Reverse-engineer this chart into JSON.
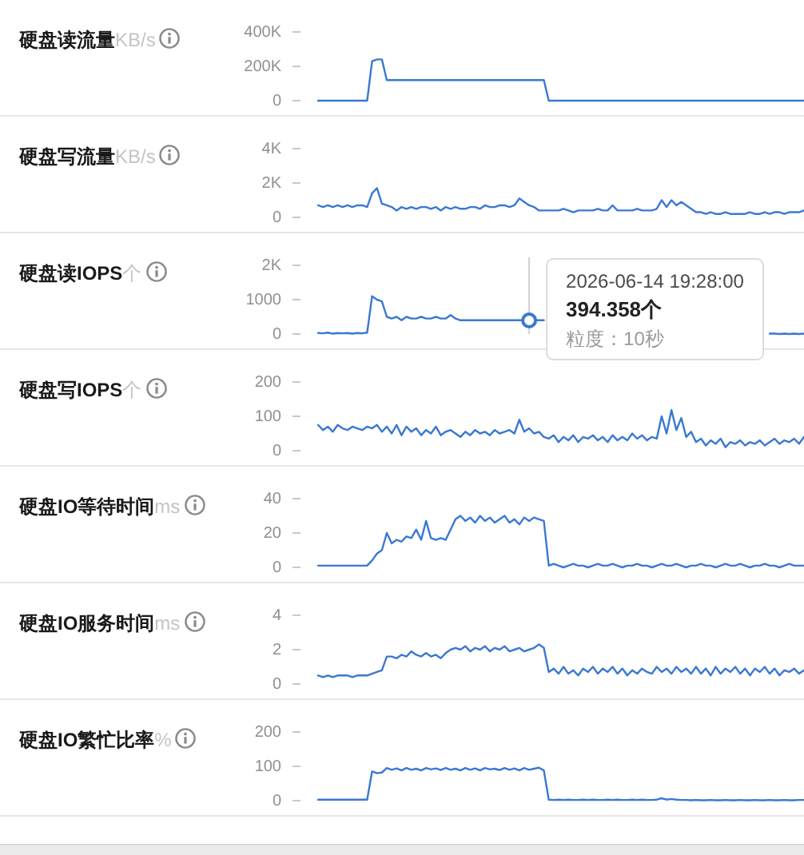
{
  "chart_data": [
    {
      "type": "line",
      "title": "**硬盘读流量**KB/s",
      "color": "#3a78d2",
      "ylim": [
        0,
        400000
      ],
      "yticks": [
        0,
        {
          "value": 200000,
          "label": "200K"
        },
        {
          "value": 400000,
          "label": "400K"
        }
      ],
      "categories": [
        null,
        null,
        null,
        null,
        null,
        null,
        null,
        null,
        null,
        null,
        null,
        null,
        null,
        null,
        null,
        null,
        null,
        null,
        null,
        null,
        null,
        null,
        null,
        null,
        null,
        null,
        null,
        null,
        null,
        null,
        null,
        null,
        null,
        null,
        null,
        null,
        null,
        null,
        null,
        null,
        null,
        null,
        null,
        null,
        null,
        null,
        null,
        null,
        null,
        null,
        null,
        null,
        null,
        null,
        null,
        null,
        null,
        null,
        null,
        null,
        null,
        null,
        null,
        null,
        null,
        null,
        null,
        null,
        null,
        null,
        null,
        null,
        null,
        null,
        null,
        null,
        null,
        null,
        null,
        null,
        null,
        null,
        null,
        null,
        null,
        null,
        null,
        null,
        null,
        null,
        null,
        null,
        null,
        null,
        null,
        null,
        null,
        null,
        null,
        null
      ],
      "values": [
        0,
        0,
        0,
        0,
        0,
        0,
        0,
        0,
        0,
        0,
        0,
        230000,
        240000,
        240000,
        120000,
        120000,
        120000,
        120000,
        120000,
        120000,
        120000,
        120000,
        120000,
        120000,
        120000,
        120000,
        120000,
        120000,
        120000,
        120000,
        120000,
        120000,
        120000,
        120000,
        120000,
        120000,
        120000,
        120000,
        120000,
        120000,
        120000,
        120000,
        120000,
        120000,
        120000,
        120000,
        120000,
        0,
        0,
        0,
        0,
        0,
        0,
        0,
        0,
        0,
        0,
        0,
        0,
        0,
        0,
        0,
        0,
        0,
        0,
        0,
        0,
        0,
        0,
        0,
        0,
        0,
        0,
        0,
        0,
        0,
        0,
        0,
        0,
        0,
        0,
        0,
        0,
        0,
        0,
        0,
        0,
        0,
        0,
        0,
        0,
        0,
        0,
        0,
        0,
        0,
        0,
        0,
        0,
        0
      ]
    },
    {
      "type": "line",
      "title": "**硬盘写流量**KB/s",
      "color": "#3a78d2",
      "ylim": [
        0,
        4000
      ],
      "yticks": [
        0,
        {
          "value": 2000,
          "label": "2K"
        },
        {
          "value": 4000,
          "label": "4K"
        }
      ],
      "categories": [
        null,
        null,
        null,
        null,
        null,
        null,
        null,
        null,
        null,
        null,
        null,
        null,
        null,
        null,
        null,
        null,
        null,
        null,
        null,
        null,
        null,
        null,
        null,
        null,
        null,
        null,
        null,
        null,
        null,
        null,
        null,
        null,
        null,
        null,
        null,
        null,
        null,
        null,
        null,
        null,
        null,
        null,
        null,
        null,
        null,
        null,
        null,
        null,
        null,
        null,
        null,
        null,
        null,
        null,
        null,
        null,
        null,
        null,
        null,
        null,
        null,
        null,
        null,
        null,
        null,
        null,
        null,
        null,
        null,
        null,
        null,
        null,
        null,
        null,
        null,
        null,
        null,
        null,
        null,
        null,
        null,
        null,
        null,
        null,
        null,
        null,
        null,
        null,
        null,
        null,
        null,
        null,
        null,
        null,
        null,
        null,
        null,
        null,
        null,
        null
      ],
      "values": [
        700,
        600,
        700,
        600,
        700,
        600,
        700,
        600,
        700,
        700,
        600,
        1400,
        1700,
        800,
        700,
        600,
        400,
        600,
        500,
        600,
        500,
        600,
        600,
        500,
        600,
        400,
        600,
        500,
        600,
        500,
        500,
        600,
        600,
        500,
        700,
        600,
        600,
        700,
        700,
        600,
        700,
        1100,
        900,
        700,
        600,
        400,
        400,
        400,
        400,
        400,
        500,
        400,
        300,
        400,
        400,
        400,
        400,
        500,
        400,
        400,
        700,
        400,
        400,
        400,
        400,
        500,
        400,
        400,
        400,
        500,
        1000,
        600,
        1000,
        700,
        900,
        700,
        500,
        300,
        300,
        200,
        300,
        200,
        200,
        300,
        200,
        200,
        200,
        200,
        300,
        200,
        200,
        300,
        200,
        300,
        300,
        200,
        300,
        300,
        300,
        400
      ]
    },
    {
      "type": "line",
      "title": "**硬盘读IOPS**个",
      "color": "#3a78d2",
      "ylim": [
        0,
        2000
      ],
      "yticks": [
        0,
        1000,
        {
          "value": 2000,
          "label": "2K"
        }
      ],
      "categories": [
        null,
        null,
        null,
        null,
        null,
        null,
        null,
        null,
        null,
        null,
        null,
        null,
        null,
        null,
        null,
        null,
        null,
        null,
        null,
        null,
        null,
        null,
        null,
        null,
        null,
        null,
        null,
        null,
        null,
        null,
        null,
        null,
        null,
        null,
        null,
        null,
        null,
        null,
        null,
        null,
        null,
        null,
        null,
        null,
        null,
        null,
        null,
        null,
        null,
        null,
        null,
        null,
        null,
        null,
        null,
        null,
        null,
        null,
        null,
        null,
        null,
        null,
        null,
        null,
        null,
        null,
        null,
        null,
        null,
        null,
        null,
        null,
        null,
        null,
        null,
        null,
        null,
        null,
        null,
        null,
        null,
        null,
        null,
        null,
        null,
        null,
        null,
        null,
        null,
        null,
        null,
        null,
        null,
        null,
        null,
        null,
        null,
        null,
        null,
        null
      ],
      "values": [
        30,
        20,
        40,
        10,
        30,
        20,
        30,
        10,
        30,
        20,
        40,
        1100,
        1000,
        950,
        500,
        450,
        500,
        400,
        500,
        450,
        450,
        500,
        450,
        450,
        500,
        450,
        450,
        550,
        450,
        400,
        400,
        400,
        400,
        400,
        400,
        400,
        400,
        400,
        400,
        400,
        400,
        400,
        400,
        394.358,
        400,
        400,
        400,
        null,
        null,
        null,
        null,
        null,
        null,
        null,
        null,
        null,
        null,
        null,
        null,
        null,
        null,
        null,
        null,
        null,
        null,
        null,
        null,
        null,
        null,
        null,
        null,
        null,
        null,
        null,
        null,
        null,
        null,
        null,
        null,
        null,
        null,
        null,
        null,
        null,
        null,
        null,
        null,
        null,
        null,
        null,
        null,
        null,
        10,
        10,
        0,
        10,
        0,
        10,
        0,
        10
      ],
      "value_labels": [
        null,
        null,
        null,
        null,
        null,
        null,
        null,
        null,
        null,
        null,
        null,
        null,
        null,
        null,
        null,
        null,
        null,
        null,
        null,
        null,
        null,
        null,
        null,
        null,
        null,
        null,
        null,
        null,
        null,
        null,
        null,
        null,
        null,
        null,
        null,
        null,
        null,
        null,
        null,
        null,
        null,
        null,
        null,
        "394.358个",
        null,
        null,
        null,
        null,
        null,
        null,
        null,
        null,
        null,
        null,
        null,
        null,
        null,
        null,
        null,
        null,
        null,
        null,
        null,
        null,
        null,
        null,
        null,
        null,
        null,
        null,
        null,
        null,
        null,
        null,
        null,
        null,
        null,
        null,
        null,
        null,
        null,
        null,
        null,
        null,
        null,
        null,
        null,
        null,
        null,
        null,
        null,
        null,
        null,
        null,
        null,
        null,
        null,
        null,
        null,
        null
      ],
      "annotations": [
        "2026-06-14 19:28:00",
        "粒度：10秒"
      ]
    },
    {
      "type": "line",
      "title": "**硬盘写IOPS**个",
      "color": "#3a78d2",
      "ylim": [
        0,
        200
      ],
      "yticks": [
        0,
        100,
        200
      ],
      "categories": [
        null,
        null,
        null,
        null,
        null,
        null,
        null,
        null,
        null,
        null,
        null,
        null,
        null,
        null,
        null,
        null,
        null,
        null,
        null,
        null,
        null,
        null,
        null,
        null,
        null,
        null,
        null,
        null,
        null,
        null,
        null,
        null,
        null,
        null,
        null,
        null,
        null,
        null,
        null,
        null,
        null,
        null,
        null,
        null,
        null,
        null,
        null,
        null,
        null,
        null,
        null,
        null,
        null,
        null,
        null,
        null,
        null,
        null,
        null,
        null,
        null,
        null,
        null,
        null,
        null,
        null,
        null,
        null,
        null,
        null,
        null,
        null,
        null,
        null,
        null,
        null,
        null,
        null,
        null,
        null,
        null,
        null,
        null,
        null,
        null,
        null,
        null,
        null,
        null,
        null,
        null,
        null,
        null,
        null,
        null,
        null,
        null,
        null,
        null,
        null
      ],
      "values": [
        75,
        60,
        70,
        55,
        75,
        65,
        60,
        70,
        65,
        60,
        70,
        65,
        75,
        55,
        70,
        50,
        75,
        45,
        70,
        55,
        65,
        45,
        60,
        50,
        70,
        45,
        55,
        60,
        50,
        40,
        55,
        45,
        60,
        50,
        55,
        45,
        60,
        50,
        55,
        60,
        50,
        90,
        55,
        65,
        50,
        55,
        40,
        35,
        45,
        25,
        40,
        30,
        45,
        25,
        40,
        35,
        45,
        30,
        40,
        25,
        45,
        30,
        40,
        30,
        50,
        35,
        45,
        30,
        40,
        35,
        100,
        50,
        118,
        60,
        95,
        40,
        55,
        25,
        35,
        15,
        30,
        20,
        35,
        10,
        25,
        20,
        30,
        15,
        25,
        20,
        30,
        15,
        25,
        35,
        20,
        30,
        25,
        35,
        20,
        40
      ]
    },
    {
      "type": "line",
      "title": "**硬盘IO等待时间**ms",
      "color": "#3a78d2",
      "ylim": [
        0,
        40
      ],
      "yticks": [
        0,
        20,
        40
      ],
      "categories": [
        null,
        null,
        null,
        null,
        null,
        null,
        null,
        null,
        null,
        null,
        null,
        null,
        null,
        null,
        null,
        null,
        null,
        null,
        null,
        null,
        null,
        null,
        null,
        null,
        null,
        null,
        null,
        null,
        null,
        null,
        null,
        null,
        null,
        null,
        null,
        null,
        null,
        null,
        null,
        null,
        null,
        null,
        null,
        null,
        null,
        null,
        null,
        null,
        null,
        null,
        null,
        null,
        null,
        null,
        null,
        null,
        null,
        null,
        null,
        null,
        null,
        null,
        null,
        null,
        null,
        null,
        null,
        null,
        null,
        null,
        null,
        null,
        null,
        null,
        null,
        null,
        null,
        null,
        null,
        null,
        null,
        null,
        null,
        null,
        null,
        null,
        null,
        null,
        null,
        null,
        null,
        null,
        null,
        null,
        null,
        null,
        null,
        null,
        null,
        null
      ],
      "values": [
        1,
        1,
        1,
        1,
        1,
        1,
        1,
        1,
        1,
        1,
        1,
        4,
        8,
        10,
        20,
        14,
        16,
        15,
        18,
        17,
        22,
        16,
        27,
        17,
        16,
        17,
        16,
        22,
        28,
        30,
        27,
        29,
        26,
        30,
        27,
        29,
        26,
        28,
        30,
        26,
        28,
        25,
        29,
        27,
        29,
        28,
        27,
        1,
        2,
        1,
        0,
        1,
        2,
        1,
        1,
        0,
        1,
        2,
        1,
        1,
        2,
        1,
        0,
        1,
        1,
        2,
        1,
        1,
        0,
        1,
        2,
        1,
        1,
        2,
        1,
        0,
        1,
        1,
        2,
        1,
        1,
        0,
        1,
        2,
        1,
        1,
        2,
        1,
        0,
        1,
        1,
        2,
        1,
        1,
        0,
        1,
        2,
        1,
        1,
        1
      ]
    },
    {
      "type": "line",
      "title": "**硬盘IO服务时间**ms",
      "color": "#3a78d2",
      "ylim": [
        0,
        4
      ],
      "yticks": [
        0,
        2,
        4
      ],
      "categories": [
        null,
        null,
        null,
        null,
        null,
        null,
        null,
        null,
        null,
        null,
        null,
        null,
        null,
        null,
        null,
        null,
        null,
        null,
        null,
        null,
        null,
        null,
        null,
        null,
        null,
        null,
        null,
        null,
        null,
        null,
        null,
        null,
        null,
        null,
        null,
        null,
        null,
        null,
        null,
        null,
        null,
        null,
        null,
        null,
        null,
        null,
        null,
        null,
        null,
        null,
        null,
        null,
        null,
        null,
        null,
        null,
        null,
        null,
        null,
        null,
        null,
        null,
        null,
        null,
        null,
        null,
        null,
        null,
        null,
        null,
        null,
        null,
        null,
        null,
        null,
        null,
        null,
        null,
        null,
        null,
        null,
        null,
        null,
        null,
        null,
        null,
        null,
        null,
        null,
        null,
        null,
        null,
        null,
        null,
        null,
        null,
        null,
        null,
        null,
        null
      ],
      "values": [
        0.5,
        0.4,
        0.5,
        0.4,
        0.5,
        0.5,
        0.5,
        0.4,
        0.5,
        0.5,
        0.5,
        0.6,
        0.7,
        0.8,
        1.6,
        1.6,
        1.5,
        1.7,
        1.6,
        1.9,
        1.7,
        1.6,
        1.8,
        1.6,
        1.7,
        1.5,
        1.8,
        2.0,
        2.1,
        2.0,
        2.2,
        1.9,
        2.1,
        2.0,
        2.2,
        1.9,
        2.1,
        2.0,
        2.2,
        1.9,
        2.0,
        2.1,
        1.9,
        2.0,
        2.1,
        2.3,
        2.1,
        0.7,
        0.9,
        0.6,
        1.0,
        0.6,
        0.8,
        0.5,
        0.9,
        0.7,
        1.0,
        0.6,
        0.9,
        0.7,
        1.0,
        0.6,
        0.9,
        0.5,
        0.8,
        0.6,
        0.9,
        0.7,
        0.6,
        1.0,
        0.7,
        0.9,
        0.6,
        1.0,
        0.7,
        0.9,
        0.6,
        1.0,
        0.6,
        0.9,
        0.5,
        1.0,
        0.6,
        0.9,
        0.7,
        1.0,
        0.6,
        0.9,
        0.5,
        0.9,
        0.7,
        1.0,
        0.6,
        0.9,
        0.5,
        0.8,
        0.7,
        0.9,
        0.6,
        0.8
      ]
    },
    {
      "type": "line",
      "title": "**硬盘IO繁忙比率**%",
      "color": "#3a78d2",
      "ylim": [
        0,
        200
      ],
      "yticks": [
        0,
        100,
        200
      ],
      "categories": [
        null,
        null,
        null,
        null,
        null,
        null,
        null,
        null,
        null,
        null,
        null,
        null,
        null,
        null,
        null,
        null,
        null,
        null,
        null,
        null,
        null,
        null,
        null,
        null,
        null,
        null,
        null,
        null,
        null,
        null,
        null,
        null,
        null,
        null,
        null,
        null,
        null,
        null,
        null,
        null,
        null,
        null,
        null,
        null,
        null,
        null,
        null,
        null,
        null,
        null,
        null,
        null,
        null,
        null,
        null,
        null,
        null,
        null,
        null,
        null,
        null,
        null,
        null,
        null,
        null,
        null,
        null,
        null,
        null,
        null,
        null,
        null,
        null,
        null,
        null,
        null,
        null,
        null,
        null,
        null,
        null,
        null,
        null,
        null,
        null,
        null,
        null,
        null,
        null,
        null,
        null,
        null,
        null,
        null,
        null,
        null,
        null,
        null,
        null,
        null
      ],
      "values": [
        3,
        3,
        3,
        3,
        3,
        3,
        3,
        3,
        3,
        3,
        3,
        85,
        80,
        82,
        95,
        90,
        94,
        88,
        95,
        90,
        93,
        88,
        95,
        91,
        94,
        89,
        95,
        90,
        93,
        88,
        95,
        90,
        94,
        88,
        95,
        91,
        93,
        89,
        95,
        90,
        94,
        88,
        95,
        90,
        93,
        96,
        88,
        3,
        2,
        3,
        2,
        3,
        2,
        2,
        3,
        2,
        3,
        2,
        2,
        3,
        2,
        3,
        2,
        2,
        3,
        2,
        3,
        2,
        2,
        3,
        7,
        3,
        5,
        3,
        2,
        2,
        1,
        2,
        1,
        1,
        2,
        1,
        1,
        2,
        1,
        1,
        2,
        1,
        1,
        2,
        1,
        1,
        2,
        1,
        1,
        2,
        1,
        1,
        2,
        2
      ]
    }
  ]
}
